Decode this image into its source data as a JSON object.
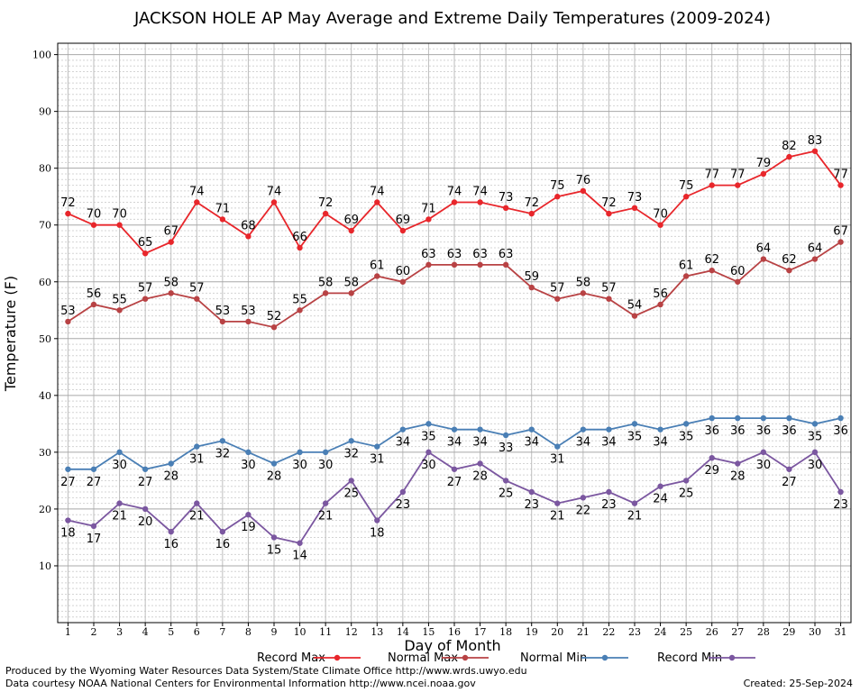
{
  "footer": {
    "produced_by": "Produced by the Wyoming Water Resources Data System/State Climate Office http://www.wrds.uwyo.edu",
    "courtesy": "Data courtesy NOAA National Centers for Environmental Information http://www.ncei.noaa.gov",
    "created": "Created:  25-Sep-2024"
  },
  "chart_data": {
    "type": "line",
    "title": "JACKSON HOLE AP May Average and Extreme Daily Temperatures (2009-2024)",
    "xlabel": "Day of Month",
    "ylabel": "Temperature (F)",
    "xlim": [
      0.6,
      31.4
    ],
    "ylim": [
      0,
      102
    ],
    "yticks": [
      10,
      20,
      30,
      40,
      50,
      60,
      70,
      80,
      90,
      100
    ],
    "grid": true,
    "legend_placement": "bottom",
    "x": [
      1,
      2,
      3,
      4,
      5,
      6,
      7,
      8,
      9,
      10,
      11,
      12,
      13,
      14,
      15,
      16,
      17,
      18,
      19,
      20,
      21,
      22,
      23,
      24,
      25,
      26,
      27,
      28,
      29,
      30,
      31
    ],
    "series": [
      {
        "name": "Record Max",
        "color": "#e8262b",
        "label_pos": "above",
        "values": [
          72,
          70,
          70,
          65,
          67,
          74,
          71,
          68,
          74,
          66,
          72,
          69,
          74,
          69,
          71,
          74,
          74,
          73,
          72,
          75,
          76,
          72,
          73,
          70,
          75,
          77,
          77,
          79,
          82,
          83,
          77
        ]
      },
      {
        "name": "Normal Max",
        "color": "#b84244",
        "label_pos": "above",
        "values": [
          53,
          56,
          55,
          57,
          58,
          57,
          53,
          53,
          52,
          55,
          58,
          58,
          61,
          60,
          63,
          63,
          63,
          63,
          59,
          57,
          58,
          57,
          54,
          56,
          61,
          62,
          60,
          64,
          62,
          64,
          67
        ]
      },
      {
        "name": "Normal Min",
        "color": "#4a7fb5",
        "label_pos": "below",
        "values": [
          27,
          27,
          30,
          27,
          28,
          31,
          32,
          30,
          28,
          30,
          30,
          32,
          31,
          34,
          35,
          34,
          34,
          33,
          34,
          31,
          34,
          34,
          35,
          34,
          35,
          36,
          36,
          36,
          36,
          35,
          36
        ]
      },
      {
        "name": "Record Min",
        "color": "#7b57a0",
        "label_pos": "below",
        "values": [
          18,
          17,
          21,
          20,
          16,
          21,
          16,
          19,
          15,
          14,
          21,
          25,
          18,
          23,
          30,
          27,
          28,
          25,
          23,
          21,
          22,
          23,
          21,
          24,
          25,
          29,
          28,
          30,
          27,
          30,
          23
        ]
      }
    ]
  }
}
